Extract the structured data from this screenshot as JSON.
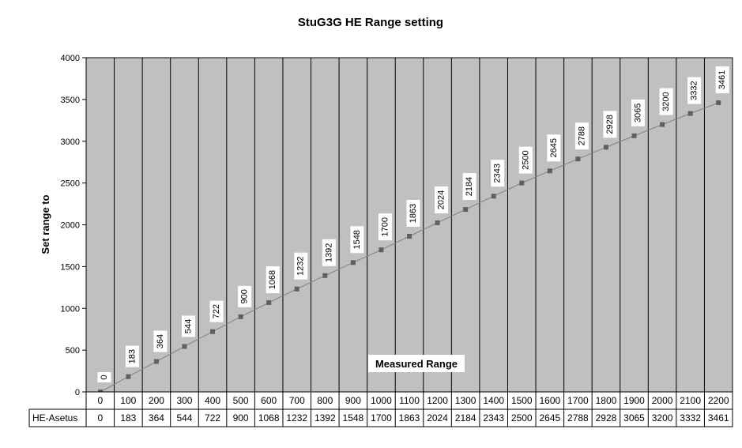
{
  "chart_data": {
    "type": "line",
    "title": "StuG3G HE Range setting",
    "xlabel": "Measured Range",
    "ylabel": "Set range to",
    "ylim": [
      0,
      4000
    ],
    "y_ticks": [
      0,
      500,
      1000,
      1500,
      2000,
      2500,
      3000,
      3500,
      4000
    ],
    "categories": [
      "0",
      "100",
      "200",
      "300",
      "400",
      "500",
      "600",
      "700",
      "800",
      "900",
      "1000",
      "1100",
      "1200",
      "1300",
      "1400",
      "1500",
      "1600",
      "1700",
      "1800",
      "1900",
      "2000",
      "2100",
      "2200"
    ],
    "series": [
      {
        "name": "HE-Asetus",
        "values": [
          0,
          183,
          364,
          544,
          722,
          900,
          1068,
          1232,
          1392,
          1548,
          1700,
          1863,
          2024,
          2184,
          2343,
          2500,
          2645,
          2788,
          2928,
          3065,
          3200,
          3332,
          3461
        ]
      }
    ],
    "grid": true,
    "data_table": true,
    "plot_background": "#c0c0c0",
    "line_color": "#808080",
    "marker_color": "#606060"
  }
}
